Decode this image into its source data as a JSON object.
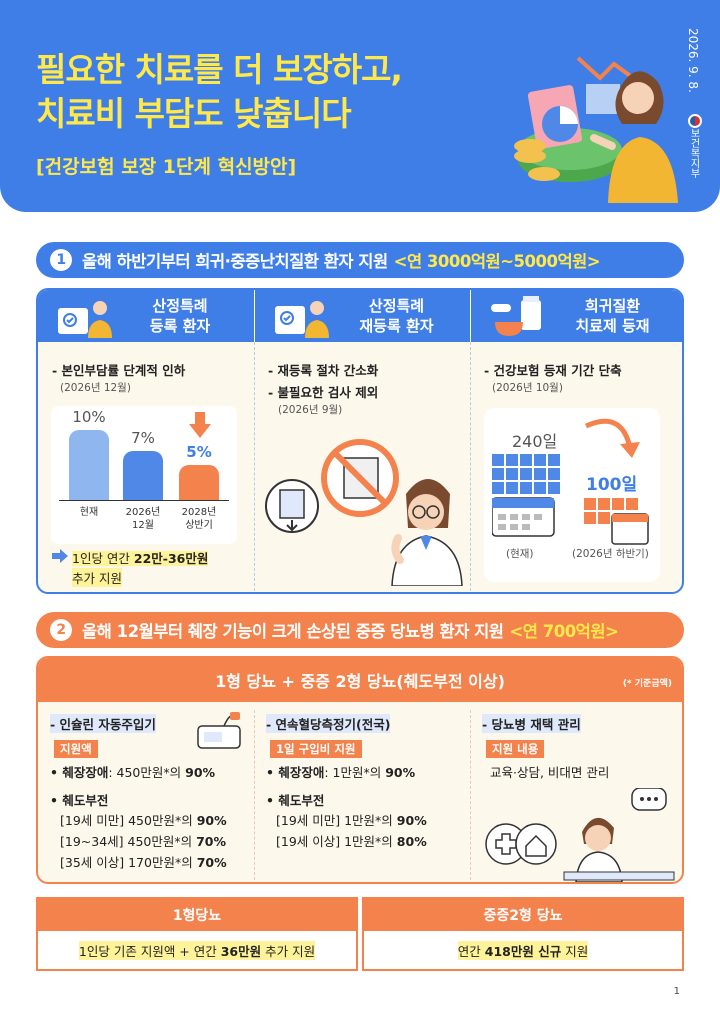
{
  "header": {
    "title_line1": "필요한 치료를 더 보장하고,",
    "title_line2": "치료비 부담도 낮춥니다",
    "subtitle": "[건강보험 보장 1단계 혁신방안]",
    "date": "2026. 9. 8.",
    "ministry": "보건복지부"
  },
  "section1": {
    "number": "1",
    "title": "올해 하반기부터 희귀·중증난치질환 환자 지원",
    "highlight": "<연 3000억원~5000억원>",
    "columns": [
      {
        "header_line1": "산정특례",
        "header_line2": "등록 환자",
        "icon": "person-document-icon",
        "bullet": "- 본인부담률 단계적 인하",
        "date": "(2026년 12월)",
        "chart_data": {
          "type": "bar",
          "categories": [
            "현재",
            "2026년\n12월",
            "2028년\n상반기"
          ],
          "values": [
            10,
            7,
            5
          ],
          "value_labels": [
            "10%",
            "7%",
            "5%"
          ],
          "colors": [
            "#8fb6ef",
            "#4f88e6",
            "#f4824c"
          ]
        },
        "tick_1": "현재",
        "tick_2a": "2026년",
        "tick_2b": "12월",
        "tick_3a": "2028년",
        "tick_3b": "상반기",
        "note_prefix": "1인당 연간 ",
        "note_bold": "22만-36만원",
        "note_suffix": "추가 지원"
      },
      {
        "header_line1": "산정특례",
        "header_line2": "재등록 환자",
        "icon": "person-document-icon",
        "bullet1": "- 재등록 절차 간소화",
        "bullet2": "- 불필요한 검사 제외",
        "date": "(2026년 9월)"
      },
      {
        "header_line1": "희귀질환",
        "header_line2": "치료제 등재",
        "icon": "medicine-icon",
        "bullet": "- 건강보험 등재 기간 단축",
        "date": "(2026년 10월)",
        "before_days": "240일",
        "after_days": "100일",
        "caption_before": "(현재)",
        "caption_after": "(2026년 하반기)"
      }
    ]
  },
  "section2": {
    "number": "2",
    "title": "올해 12월부터 췌장 기능이 크게 손상된 중증 당뇨병 환자 지원",
    "highlight": "<연 700억원>",
    "panel_title": "1형 당뇨 + 중증 2형 당뇨(췌도부전 이상)",
    "panel_note": "(* 기준금액)",
    "col1": {
      "title": "- 인슐린 자동주입기",
      "tag": "지원액",
      "line1_label": "• 췌장장애",
      "line1_text": ": 450만원*의 ",
      "line1_pct": "90%",
      "line2": "• 췌도부전",
      "r1_text": "[19세 미만] 450만원*의 ",
      "r1_pct": "90%",
      "r2_text": "[19~34세] 450만원*의 ",
      "r2_pct": "70%",
      "r3_text": "[35세 이상] 170만원*의 ",
      "r3_pct": "70%"
    },
    "col2": {
      "title": "- 연속혈당측정기(전국)",
      "tag": "1일 구입비 지원",
      "line1_label": "• 췌장장애",
      "line1_text": ": 1만원*의 ",
      "line1_pct": "90%",
      "line2": "• 췌도부전",
      "r1_text": "[19세 미만] 1만원*의 ",
      "r1_pct": "90%",
      "r2_text": "[19세 이상] 1만원*의 ",
      "r2_pct": "80%"
    },
    "col3": {
      "title": "- 당뇨병 재택 관리",
      "tag": "지원 내용",
      "text": "교육·상담, 비대면 관리"
    }
  },
  "bottom": {
    "left_head": "1형당뇨",
    "left_text_prefix": "1인당 기존 지원액 + 연간 ",
    "left_text_bold": "36만원",
    "left_text_suffix": " 추가 지원",
    "right_head": "중증2형 당뇨",
    "right_text_prefix": "연간 ",
    "right_text_bold": "418만원 신규",
    "right_text_suffix": " 지원"
  },
  "page_number": "1"
}
